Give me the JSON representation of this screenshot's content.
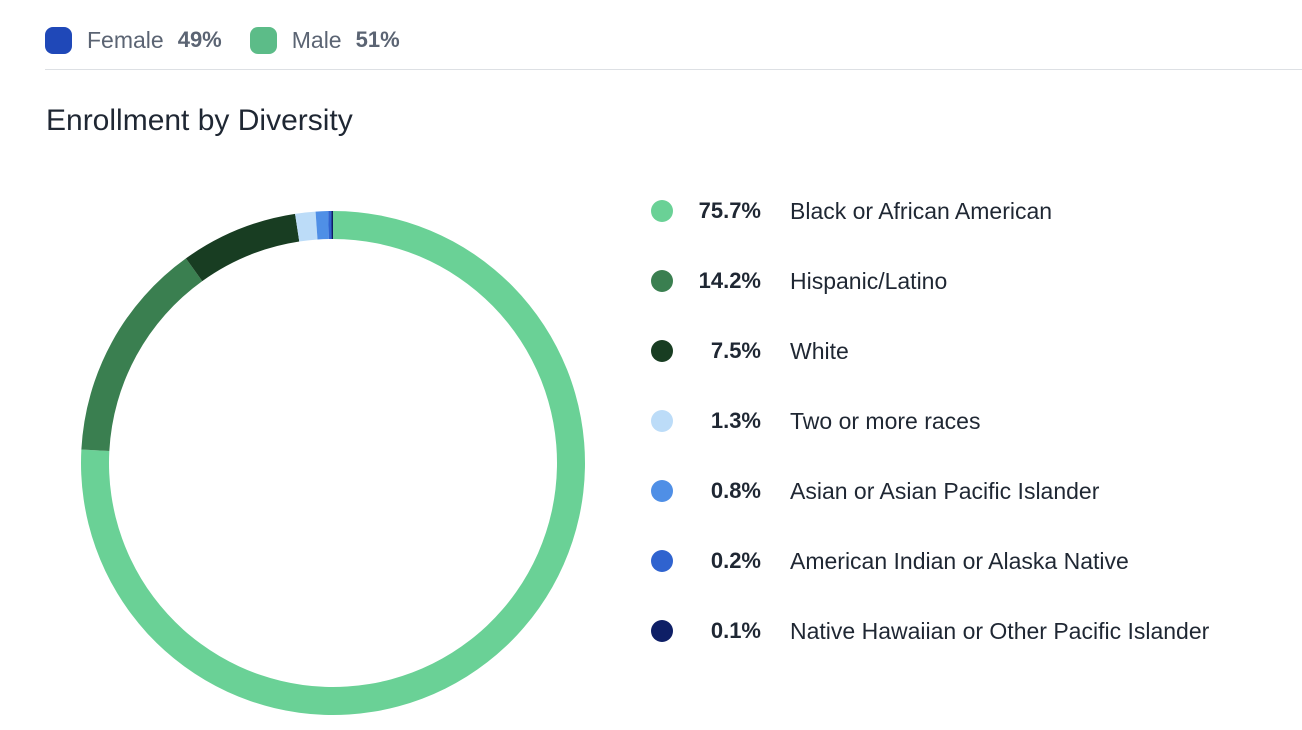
{
  "gender": {
    "items": [
      {
        "label": "Female",
        "value": "49%",
        "color": "#1f48b8"
      },
      {
        "label": "Male",
        "value": "51%",
        "color": "#5cbc88"
      }
    ]
  },
  "section": {
    "title": "Enrollment by Diversity"
  },
  "chart_data": {
    "type": "pie",
    "variant": "donut",
    "title": "Enrollment by Diversity",
    "legend_position": "right",
    "series": [
      {
        "label": "Black or African American",
        "value": 75.7,
        "display": "75.7%",
        "color": "#6ad196"
      },
      {
        "label": "Hispanic/Latino",
        "value": 14.2,
        "display": "14.2%",
        "color": "#3a7f50"
      },
      {
        "label": "White",
        "value": 7.5,
        "display": "7.5%",
        "color": "#183d22"
      },
      {
        "label": "Two or more races",
        "value": 1.3,
        "display": "1.3%",
        "color": "#bcdcf8"
      },
      {
        "label": "Asian or Asian Pacific Islander",
        "value": 0.8,
        "display": "0.8%",
        "color": "#4f8fe6"
      },
      {
        "label": "American Indian or Alaska Native",
        "value": 0.2,
        "display": "0.2%",
        "color": "#2f63cf"
      },
      {
        "label": "Native Hawaiian or Other Pacific Islander",
        "value": 0.1,
        "display": "0.1%",
        "color": "#0e1f66"
      }
    ]
  }
}
